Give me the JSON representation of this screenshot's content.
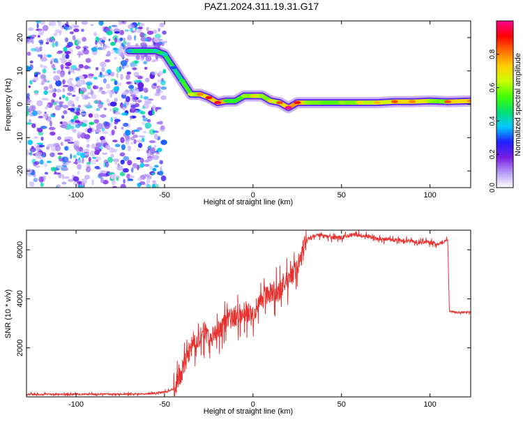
{
  "title": "PAZ1.2024.311.19.31.G17",
  "chart_data": [
    {
      "type": "heatmap",
      "xlabel": "Height of straight line (km)",
      "ylabel": "Frequency (Hz)",
      "xlim": [
        -128,
        123
      ],
      "ylim": [
        -25,
        25
      ],
      "xticks": [
        -100,
        -50,
        0,
        50,
        100
      ],
      "yticks": [
        -20,
        -10,
        0,
        10,
        20
      ],
      "colorbar": {
        "label": "Normalized spectral amplitude",
        "range": [
          0,
          1
        ],
        "ticks": [
          "0.0",
          "0.2",
          "0.4",
          "0.6",
          "0.8"
        ],
        "colormap": [
          "#ffffff",
          "#b499f5",
          "#7a1ce6",
          "#2020ff",
          "#00c8ff",
          "#00e070",
          "#40ff00",
          "#c8ff00",
          "#ffd000",
          "#ff7000",
          "#ff0000",
          "#ff0090"
        ]
      },
      "ridge": {
        "x": [
          -70,
          -55,
          -50,
          -45,
          -40,
          -35,
          -30,
          -25,
          -20,
          -15,
          -10,
          -5,
          0,
          5,
          10,
          15,
          20,
          25,
          30,
          40,
          50,
          60,
          70,
          80,
          90,
          100,
          110,
          123
        ],
        "frequency": [
          16,
          16,
          15,
          11,
          7,
          3,
          3,
          2,
          0.5,
          1,
          1,
          2.5,
          2.5,
          2.5,
          1,
          0.5,
          -1,
          0.5,
          0.5,
          0.5,
          0.5,
          0.5,
          0.5,
          0.8,
          0.8,
          1,
          0.8,
          1
        ],
        "amplitude": [
          0.35,
          0.4,
          0.4,
          0.3,
          0.5,
          0.65,
          0.8,
          0.9,
          0.95,
          0.5,
          0.5,
          0.6,
          0.7,
          0.6,
          0.7,
          0.85,
          1.0,
          0.9,
          0.6,
          0.55,
          0.6,
          0.7,
          0.75,
          0.85,
          0.8,
          0.6,
          0.85,
          0.8
        ]
      },
      "noise_region": {
        "x": [
          -128,
          -50
        ],
        "amplitude": [
          0.05,
          0.45
        ]
      }
    },
    {
      "type": "line",
      "xlabel": "Height of straight line (km)",
      "ylabel": "SNR (10 * v/v)",
      "xlim": [
        -128,
        123
      ],
      "ylim": [
        0,
        6800
      ],
      "xticks": [
        -100,
        -50,
        0,
        50,
        100
      ],
      "yticks": [
        2000,
        4000,
        6000
      ],
      "color": "#e8312e",
      "series": [
        {
          "x": [
            -128,
            -60,
            -50,
            -45,
            -42,
            -38,
            -35,
            -30,
            -27,
            -25,
            -20,
            -15,
            -10,
            -5,
            0,
            5,
            10,
            15,
            20,
            25,
            28,
            30,
            35,
            40,
            45,
            50,
            55,
            60,
            70,
            80,
            90,
            95,
            100,
            105,
            110,
            111,
            115,
            123
          ],
          "values": [
            100,
            120,
            200,
            300,
            700,
            1500,
            2000,
            2400,
            2700,
            2300,
            2700,
            3100,
            3300,
            3500,
            3400,
            4000,
            4300,
            4300,
            4800,
            5300,
            5900,
            6400,
            6600,
            6550,
            6500,
            6500,
            6600,
            6600,
            6450,
            6400,
            6350,
            6300,
            6300,
            6250,
            6400,
            3500,
            3450,
            3450
          ]
        }
      ]
    }
  ]
}
